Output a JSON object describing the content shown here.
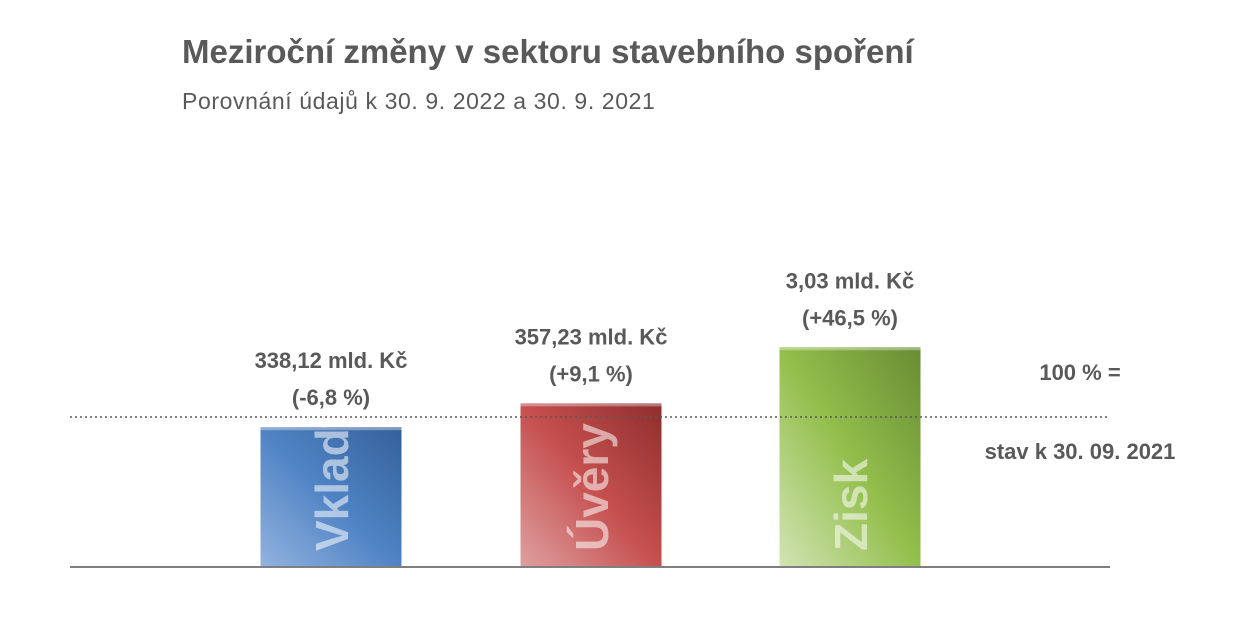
{
  "chart_data": {
    "type": "bar",
    "title": "Meziroční změny v sektoru stavebního spoření",
    "subtitle": "Porovnání údajů k 30. 9. 2022 a 30. 9. 2021",
    "categories": [
      "Vklady",
      "Úvěry",
      "Zisk"
    ],
    "values": [
      93.2,
      109.1,
      146.5
    ],
    "value_unit": "% of state at 30. 09. 2021",
    "value_labels": [
      [
        "338,12 mld. Kč",
        "(-6,8 %)"
      ],
      [
        "357,23 mld. Kč",
        "(+9,1 %)"
      ],
      [
        "3,03 mld. Kč",
        "(+46,5 %)"
      ]
    ],
    "colors": [
      "#4a7ebb",
      "#be4b48",
      "#8db84a"
    ],
    "reference_line": {
      "value": 100,
      "label_top": "100 % =",
      "label_bottom": "stav k 30. 09. 2021",
      "style": "dotted"
    },
    "ylim": [
      0,
      150
    ],
    "grid": false,
    "legend": "none",
    "xlabel": "",
    "ylabel": ""
  }
}
